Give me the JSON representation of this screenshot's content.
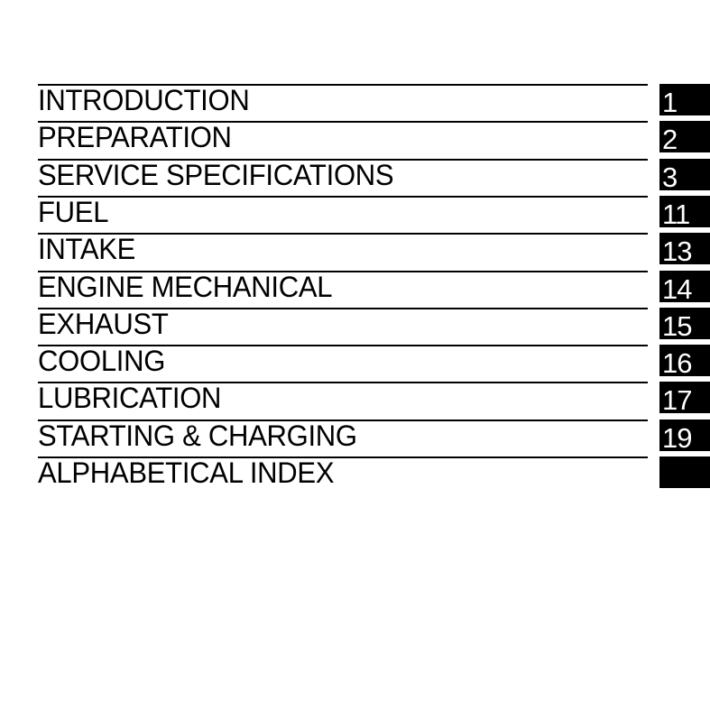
{
  "sections": [
    {
      "title": "INTRODUCTION",
      "tab": "1"
    },
    {
      "title": "PREPARATION",
      "tab": "2"
    },
    {
      "title": "SERVICE SPECIFICATIONS",
      "tab": "3"
    },
    {
      "title": "FUEL",
      "tab": "11"
    },
    {
      "title": "INTAKE",
      "tab": "13"
    },
    {
      "title": "ENGINE MECHANICAL",
      "tab": "14"
    },
    {
      "title": "EXHAUST",
      "tab": "15"
    },
    {
      "title": "COOLING",
      "tab": "16"
    },
    {
      "title": "LUBRICATION",
      "tab": "17"
    },
    {
      "title": "STARTING & CHARGING",
      "tab": "19"
    },
    {
      "title": "ALPHABETICAL INDEX",
      "tab": ""
    }
  ]
}
